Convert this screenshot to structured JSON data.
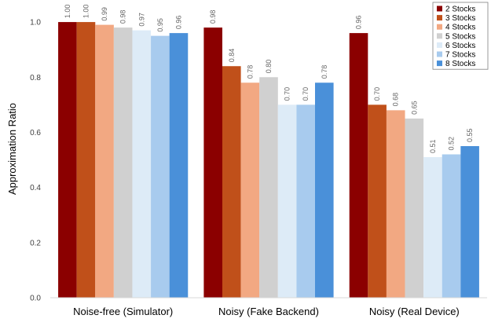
{
  "chart_data": {
    "type": "bar",
    "categories": [
      "Noise-free (Simulator)",
      "Noisy (Fake Backend)",
      "Noisy (Real Device)"
    ],
    "ylabel": "Approximation Ratio",
    "ylim": [
      0,
      1.08
    ],
    "yticks": [
      "0.0",
      "0.2",
      "0.4",
      "0.6",
      "0.8",
      "1.0"
    ],
    "grid": false,
    "legend_position": "top-right",
    "series": [
      {
        "name": "2 Stocks",
        "color": "#8B0000",
        "values": [
          1.0,
          0.98,
          0.96
        ],
        "labels": [
          "1.00",
          "0.98",
          "0.96"
        ]
      },
      {
        "name": "3 Stocks",
        "color": "#C0501A",
        "values": [
          1.0,
          0.84,
          0.7
        ],
        "labels": [
          "1.00",
          "0.84",
          "0.70"
        ]
      },
      {
        "name": "4 Stocks",
        "color": "#F2A882",
        "values": [
          0.99,
          0.78,
          0.68
        ],
        "labels": [
          "0.99",
          "0.78",
          "0.68"
        ]
      },
      {
        "name": "5 Stocks",
        "color": "#D0D0D0",
        "values": [
          0.98,
          0.8,
          0.65
        ],
        "labels": [
          "0.98",
          "0.80",
          "0.65"
        ]
      },
      {
        "name": "6 Stocks",
        "color": "#DDEBF7",
        "values": [
          0.97,
          0.7,
          0.51
        ],
        "labels": [
          "0.97",
          "0.70",
          "0.51"
        ]
      },
      {
        "name": "7 Stocks",
        "color": "#A8CBEE",
        "values": [
          0.95,
          0.7,
          0.52
        ],
        "labels": [
          "0.95",
          "0.70",
          "0.52"
        ]
      },
      {
        "name": "8 Stocks",
        "color": "#4A90D9",
        "values": [
          0.96,
          0.78,
          0.55
        ],
        "labels": [
          "0.96",
          "0.78",
          "0.55"
        ]
      }
    ]
  }
}
